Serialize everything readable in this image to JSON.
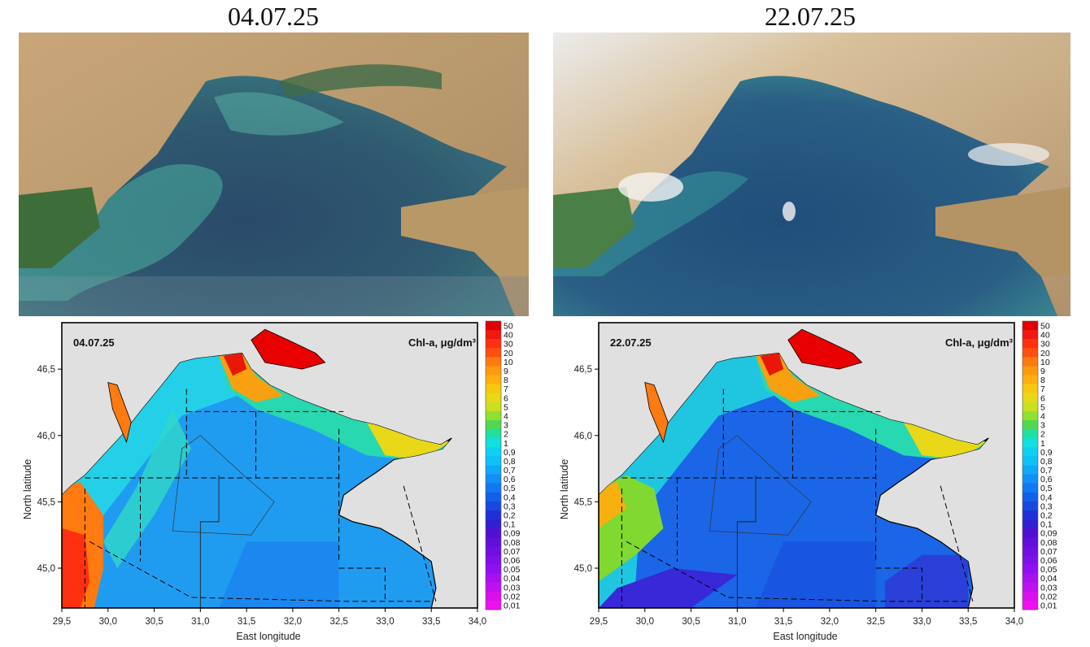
{
  "photos": {
    "left_date": "04.07.25",
    "right_date": "22.07.25"
  },
  "maps": [
    {
      "date_label": "04.07.25",
      "variable_label": "Chl-a, μg/dm³",
      "colormap_icon": "chlorophyll-scale",
      "nearshore_level": "high"
    },
    {
      "date_label": "22.07.25",
      "variable_label": "Chl-a, μg/dm³",
      "colormap_icon": "chlorophyll-scale",
      "nearshore_level": "moderate"
    }
  ],
  "axes": {
    "x_label": "East longitude",
    "y_label": "North latitude",
    "x_ticks": [
      "29,5",
      "30,0",
      "30,5",
      "31,0",
      "31,5",
      "32,0",
      "32,5",
      "33,0",
      "33,5",
      "34,0"
    ],
    "y_ticks": [
      "46,5",
      "46,0",
      "45,5",
      "45,0"
    ],
    "x_range": [
      29.5,
      34.0
    ],
    "y_range": [
      44.7,
      46.85
    ]
  },
  "colorbar": {
    "labels": [
      "50",
      "40",
      "30",
      "20",
      "10",
      "9",
      "8",
      "7",
      "6",
      "5",
      "4",
      "3",
      "2",
      "1",
      "0,9",
      "0,8",
      "0,7",
      "0,6",
      "0,5",
      "0,4",
      "0,3",
      "0,2",
      "0,1",
      "0,09",
      "0,08",
      "0,07",
      "0,06",
      "0,05",
      "0,04",
      "0,03",
      "0,02",
      "0,01"
    ],
    "colors": [
      "#e00000",
      "#f01810",
      "#ff3010",
      "#ff5010",
      "#ff7a10",
      "#ff9a10",
      "#ffb010",
      "#f8c810",
      "#e8d818",
      "#c8e020",
      "#90e030",
      "#50d850",
      "#20e0a0",
      "#10e0e0",
      "#10d0f0",
      "#10c0f8",
      "#10a8f8",
      "#1090f8",
      "#1078f0",
      "#1060e8",
      "#1848e0",
      "#2030d8",
      "#3020d0",
      "#5010d0",
      "#6010d8",
      "#7010e0",
      "#8010e8",
      "#9010f0",
      "#a810f0",
      "#c010f0",
      "#d810f0",
      "#f010f0"
    ]
  }
}
